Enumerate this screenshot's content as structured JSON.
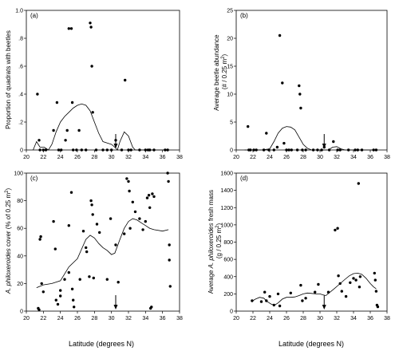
{
  "figure": {
    "xlabel": "Latitude (degrees N)"
  },
  "chart_data": [
    {
      "id": "a",
      "type": "scatter",
      "panel_label": "(a)",
      "ylabel": "Proportion of quadrats with beetles",
      "xlim": [
        20,
        38
      ],
      "ylim": [
        0,
        1.0
      ],
      "xticks": [
        20,
        22,
        24,
        26,
        28,
        30,
        32,
        34,
        36,
        38
      ],
      "yticks": [
        0,
        0.2,
        0.4,
        0.6,
        0.8,
        1.0
      ],
      "ytick_labels": [
        "0",
        ".2",
        ".4",
        ".6",
        ".8",
        "1.0"
      ],
      "arrow_x": 30.5,
      "points": [
        [
          21.3,
          0.4
        ],
        [
          21.5,
          0.07
        ],
        [
          21.6,
          0.0
        ],
        [
          22.0,
          0.0
        ],
        [
          22.3,
          0.0
        ],
        [
          23.2,
          0.14
        ],
        [
          23.6,
          0.34
        ],
        [
          23.8,
          0.0
        ],
        [
          24.1,
          0.0
        ],
        [
          24.6,
          0.07
        ],
        [
          24.8,
          0.14
        ],
        [
          25.0,
          0.87
        ],
        [
          25.3,
          0.87
        ],
        [
          25.4,
          0.34
        ],
        [
          25.5,
          0.0
        ],
        [
          25.9,
          0.0
        ],
        [
          26.2,
          0.14
        ],
        [
          26.5,
          0.0
        ],
        [
          27.0,
          0.0
        ],
        [
          27.5,
          0.91
        ],
        [
          27.6,
          0.88
        ],
        [
          27.7,
          0.6
        ],
        [
          27.8,
          0.27
        ],
        [
          28.2,
          0.0
        ],
        [
          29.0,
          0.0
        ],
        [
          29.5,
          0.0
        ],
        [
          30.0,
          0.0
        ],
        [
          30.5,
          0.07
        ],
        [
          31.2,
          0.0
        ],
        [
          31.6,
          0.5
        ],
        [
          32.0,
          0.0
        ],
        [
          32.3,
          0.0
        ],
        [
          33.3,
          0.0
        ],
        [
          34.0,
          0.0
        ],
        [
          34.3,
          0.0
        ],
        [
          34.5,
          0.0
        ],
        [
          35.0,
          0.0
        ],
        [
          36.3,
          0.0
        ],
        [
          36.6,
          0.0
        ]
      ],
      "curve": [
        [
          20.8,
          0.0
        ],
        [
          21.2,
          0.06
        ],
        [
          21.6,
          0.02
        ],
        [
          22.1,
          0.02
        ],
        [
          22.6,
          0.0
        ],
        [
          23.0,
          0.04
        ],
        [
          23.5,
          0.13
        ],
        [
          24.0,
          0.2
        ],
        [
          24.5,
          0.24
        ],
        [
          25.0,
          0.27
        ],
        [
          25.5,
          0.3
        ],
        [
          26.0,
          0.32
        ],
        [
          26.5,
          0.33
        ],
        [
          27.0,
          0.32
        ],
        [
          27.5,
          0.28
        ],
        [
          28.0,
          0.2
        ],
        [
          28.5,
          0.12
        ],
        [
          29.0,
          0.06
        ],
        [
          29.5,
          0.05
        ],
        [
          30.0,
          0.04
        ],
        [
          30.4,
          0.02
        ],
        [
          30.7,
          0.0
        ],
        [
          31.0,
          0.06
        ],
        [
          31.5,
          0.13
        ],
        [
          32.0,
          0.1
        ],
        [
          32.5,
          0.02
        ],
        [
          32.8,
          0.0
        ],
        [
          33.5,
          0.0
        ],
        [
          34.5,
          0.0
        ],
        [
          35.5,
          0.0
        ],
        [
          36.6,
          0.0
        ]
      ]
    },
    {
      "id": "b",
      "type": "scatter",
      "panel_label": "(b)",
      "ylabel": "Average beetle abundance (# / 0.25 m²)",
      "xlim": [
        20,
        38
      ],
      "ylim": [
        0,
        25
      ],
      "xticks": [
        20,
        22,
        24,
        26,
        28,
        30,
        32,
        34,
        36,
        38
      ],
      "yticks": [
        0,
        5,
        10,
        15,
        20,
        25
      ],
      "ytick_labels": [
        "0",
        "5",
        "10",
        "15",
        "20",
        "25"
      ],
      "arrow_x": 30.5,
      "points": [
        [
          21.4,
          4.2
        ],
        [
          21.5,
          0.0
        ],
        [
          21.7,
          0.0
        ],
        [
          22.1,
          0.0
        ],
        [
          22.4,
          0.0
        ],
        [
          23.3,
          0.0
        ],
        [
          23.6,
          3.0
        ],
        [
          23.9,
          0.0
        ],
        [
          24.5,
          0.0
        ],
        [
          24.9,
          0.5
        ],
        [
          25.2,
          20.5
        ],
        [
          25.5,
          12.0
        ],
        [
          25.7,
          1.2
        ],
        [
          26.0,
          0.0
        ],
        [
          26.3,
          0.0
        ],
        [
          26.6,
          0.0
        ],
        [
          27.3,
          0.0
        ],
        [
          27.5,
          11.5
        ],
        [
          27.6,
          10.0
        ],
        [
          27.7,
          7.5
        ],
        [
          27.9,
          0.0
        ],
        [
          28.3,
          0.0
        ],
        [
          29.2,
          0.0
        ],
        [
          29.7,
          0.0
        ],
        [
          30.2,
          0.0
        ],
        [
          30.5,
          0.5
        ],
        [
          31.1,
          0.0
        ],
        [
          31.6,
          1.5
        ],
        [
          32.1,
          0.0
        ],
        [
          32.4,
          0.0
        ],
        [
          33.4,
          0.0
        ],
        [
          34.2,
          0.0
        ],
        [
          34.5,
          0.0
        ],
        [
          35.0,
          0.0
        ],
        [
          36.4,
          0.0
        ],
        [
          36.7,
          0.0
        ]
      ],
      "curve": [
        [
          21.0,
          0.0
        ],
        [
          23.0,
          0.0
        ],
        [
          24.0,
          0.2
        ],
        [
          24.5,
          1.5
        ],
        [
          25.0,
          3.0
        ],
        [
          25.5,
          3.9
        ],
        [
          26.0,
          4.2
        ],
        [
          26.5,
          4.1
        ],
        [
          27.0,
          3.6
        ],
        [
          27.5,
          2.3
        ],
        [
          28.0,
          1.0
        ],
        [
          28.5,
          0.3
        ],
        [
          29.0,
          0.0
        ],
        [
          31.0,
          0.0
        ],
        [
          31.5,
          0.5
        ],
        [
          32.0,
          0.6
        ],
        [
          32.5,
          0.2
        ],
        [
          33.0,
          0.0
        ],
        [
          36.7,
          0.0
        ]
      ]
    },
    {
      "id": "c",
      "type": "scatter",
      "panel_label": "(c)",
      "ylabel": "A. philoxeroides cover (% of 0.25 m²)",
      "xlim": [
        20,
        38
      ],
      "ylim": [
        0,
        100
      ],
      "xticks": [
        20,
        22,
        24,
        26,
        28,
        30,
        32,
        34,
        36,
        38
      ],
      "yticks": [
        0,
        20,
        40,
        60,
        80,
        100
      ],
      "ytick_labels": [
        "0",
        "20",
        "40",
        "60",
        "80",
        "100"
      ],
      "arrow_x": 30.5,
      "points": [
        [
          21.4,
          2
        ],
        [
          21.5,
          1
        ],
        [
          21.6,
          52
        ],
        [
          21.7,
          54
        ],
        [
          21.8,
          20
        ],
        [
          22.0,
          14
        ],
        [
          23.2,
          65
        ],
        [
          23.4,
          45
        ],
        [
          23.5,
          8
        ],
        [
          23.7,
          5
        ],
        [
          24.0,
          15
        ],
        [
          24.0,
          11
        ],
        [
          24.5,
          23
        ],
        [
          25.0,
          28
        ],
        [
          25.0,
          62
        ],
        [
          25.3,
          86
        ],
        [
          25.4,
          16
        ],
        [
          25.5,
          8
        ],
        [
          25.6,
          3
        ],
        [
          26.3,
          23
        ],
        [
          26.7,
          58
        ],
        [
          27.0,
          46
        ],
        [
          27.1,
          43
        ],
        [
          27.4,
          25
        ],
        [
          27.6,
          80
        ],
        [
          27.7,
          77
        ],
        [
          27.8,
          70
        ],
        [
          27.9,
          24
        ],
        [
          28.3,
          63
        ],
        [
          28.6,
          57
        ],
        [
          29.5,
          23
        ],
        [
          29.9,
          67
        ],
        [
          30.5,
          48
        ],
        [
          30.8,
          21
        ],
        [
          31.5,
          56
        ],
        [
          31.8,
          96
        ],
        [
          32.0,
          94
        ],
        [
          32.1,
          87
        ],
        [
          32.2,
          60
        ],
        [
          32.5,
          79
        ],
        [
          32.8,
          72
        ],
        [
          33.3,
          67
        ],
        [
          33.7,
          59
        ],
        [
          34.0,
          65
        ],
        [
          34.2,
          82
        ],
        [
          34.4,
          84
        ],
        [
          34.5,
          75
        ],
        [
          34.6,
          2
        ],
        [
          34.7,
          3
        ],
        [
          34.8,
          85
        ],
        [
          35.0,
          83
        ],
        [
          36.6,
          100
        ],
        [
          36.7,
          94
        ],
        [
          36.8,
          48
        ],
        [
          36.8,
          37
        ],
        [
          36.9,
          18
        ]
      ],
      "curve": [
        [
          21.2,
          17
        ],
        [
          22.0,
          19
        ],
        [
          23.0,
          20
        ],
        [
          24.0,
          22
        ],
        [
          24.5,
          27
        ],
        [
          25.0,
          32
        ],
        [
          26.0,
          38
        ],
        [
          26.5,
          45
        ],
        [
          27.0,
          52
        ],
        [
          27.5,
          55
        ],
        [
          28.0,
          53
        ],
        [
          28.5,
          49
        ],
        [
          29.0,
          46
        ],
        [
          29.5,
          44
        ],
        [
          30.0,
          41
        ],
        [
          30.4,
          42
        ],
        [
          31.0,
          52
        ],
        [
          31.5,
          60
        ],
        [
          32.0,
          65
        ],
        [
          32.5,
          67
        ],
        [
          33.0,
          66
        ],
        [
          33.5,
          64
        ],
        [
          34.0,
          62
        ],
        [
          34.5,
          60
        ],
        [
          35.0,
          59
        ],
        [
          36.0,
          58
        ],
        [
          36.7,
          59
        ]
      ]
    },
    {
      "id": "d",
      "type": "scatter",
      "panel_label": "(d)",
      "ylabel": "Average A. philoxeroides fresh mass (g / 0.25 m²)",
      "xlim": [
        20,
        38
      ],
      "ylim": [
        0,
        1600
      ],
      "xticks": [
        20,
        22,
        24,
        26,
        28,
        30,
        32,
        34,
        36,
        38
      ],
      "yticks": [
        0,
        200,
        400,
        600,
        800,
        1000,
        1200,
        1400,
        1600
      ],
      "ytick_labels": [
        "0",
        "200",
        "400",
        "600",
        "800",
        "1000",
        "1200",
        "1400",
        "1600"
      ],
      "arrow_x": 30.5,
      "points": [
        [
          21.9,
          120
        ],
        [
          23.0,
          110
        ],
        [
          23.4,
          220
        ],
        [
          23.6,
          120
        ],
        [
          24.0,
          170
        ],
        [
          24.5,
          70
        ],
        [
          25.0,
          200
        ],
        [
          25.2,
          60
        ],
        [
          26.5,
          210
        ],
        [
          27.7,
          300
        ],
        [
          27.9,
          120
        ],
        [
          28.3,
          150
        ],
        [
          29.4,
          220
        ],
        [
          29.8,
          310
        ],
        [
          31.0,
          220
        ],
        [
          31.8,
          940
        ],
        [
          32.1,
          960
        ],
        [
          32.2,
          410
        ],
        [
          32.4,
          320
        ],
        [
          32.6,
          230
        ],
        [
          33.1,
          170
        ],
        [
          33.6,
          330
        ],
        [
          34.0,
          380
        ],
        [
          34.3,
          360
        ],
        [
          34.6,
          1480
        ],
        [
          34.7,
          280
        ],
        [
          34.8,
          400
        ],
        [
          36.5,
          440
        ],
        [
          36.6,
          360
        ],
        [
          36.7,
          230
        ],
        [
          36.8,
          70
        ],
        [
          36.9,
          50
        ]
      ],
      "curve": [
        [
          21.8,
          110
        ],
        [
          22.3,
          140
        ],
        [
          22.8,
          160
        ],
        [
          23.3,
          150
        ],
        [
          23.7,
          110
        ],
        [
          24.2,
          80
        ],
        [
          24.6,
          70
        ],
        [
          25.0,
          95
        ],
        [
          25.5,
          140
        ],
        [
          26.0,
          160
        ],
        [
          26.5,
          160
        ],
        [
          27.0,
          165
        ],
        [
          27.5,
          180
        ],
        [
          28.0,
          200
        ],
        [
          28.5,
          210
        ],
        [
          29.0,
          205
        ],
        [
          29.5,
          200
        ],
        [
          30.0,
          200
        ],
        [
          30.3,
          190
        ],
        [
          30.7,
          180
        ],
        [
          31.2,
          220
        ],
        [
          31.7,
          260
        ],
        [
          32.3,
          310
        ],
        [
          33.0,
          370
        ],
        [
          33.5,
          410
        ],
        [
          34.0,
          435
        ],
        [
          34.5,
          440
        ],
        [
          35.0,
          425
        ],
        [
          35.5,
          380
        ],
        [
          36.0,
          320
        ],
        [
          36.4,
          280
        ],
        [
          36.7,
          260
        ]
      ]
    }
  ]
}
